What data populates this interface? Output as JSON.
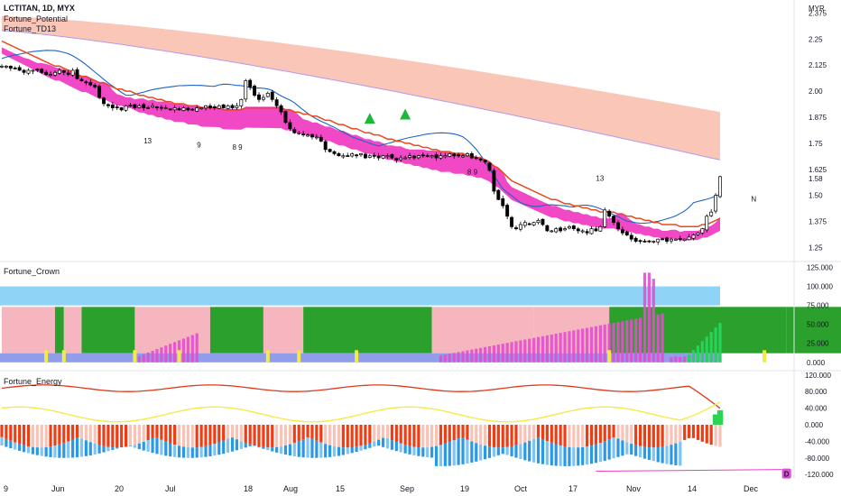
{
  "header": {
    "symbol": "LCTITAN, 1D, MYX",
    "indicators": [
      "Fortune_Potential",
      "Fortune_TD13"
    ],
    "currency": "MYR"
  },
  "panes": {
    "crown": {
      "title": "Fortune_Crown"
    },
    "energy": {
      "title": "Fortune_Energy"
    }
  },
  "colors": {
    "up": "#ffffff",
    "down": "#000000",
    "ema": "#e8491d",
    "band": "#f03ec3",
    "cloud": "#f9b8a6",
    "bb": "#1e64c8",
    "cyan": "#26c6da",
    "green": "#1bb83a",
    "crown_green": "#2ca02c",
    "crown_pink": "#f6b6c0",
    "crown_blue": "#8fd3f6",
    "crown_bar": "#e54ccf",
    "energy_red": "#ee3d15",
    "energy_pink": "#f8c2b6",
    "energy_blue": "#2a98e6",
    "energy_yellow": "#f5ea48",
    "energy_line": "#e03a1a"
  },
  "chart_data": [
    {
      "type": "candlestick",
      "pane": "main",
      "x_labels": [
        "9",
        "Jun",
        "20",
        "Jul",
        "18",
        "Aug",
        "15",
        "Sep",
        "19",
        "Oct",
        "17",
        "Nov",
        "14",
        "Dec"
      ],
      "y_ticks": [
        2.375,
        2.25,
        2.125,
        2.0,
        1.875,
        1.75,
        1.625,
        1.58,
        1.5,
        1.375,
        1.25
      ],
      "ylim": [
        1.2,
        2.42
      ],
      "close": [
        2.12,
        2.12,
        2.11,
        2.11,
        2.1,
        2.09,
        2.1,
        2.1,
        2.1,
        2.09,
        2.08,
        2.08,
        2.09,
        2.1,
        2.09,
        2.08,
        2.1,
        2.06,
        2.05,
        2.04,
        2.03,
        2.02,
        1.97,
        1.94,
        1.93,
        1.92,
        1.92,
        1.91,
        1.93,
        1.93,
        1.92,
        1.93,
        1.92,
        1.92,
        1.93,
        1.92,
        1.92,
        1.92,
        1.91,
        1.92,
        1.91,
        1.92,
        1.91,
        1.91,
        1.92,
        1.92,
        1.93,
        1.92,
        1.92,
        1.93,
        1.92,
        1.93,
        1.92,
        1.93,
        1.96,
        2.05,
        2.02,
        1.98,
        1.96,
        1.97,
        1.99,
        1.96,
        1.93,
        1.9,
        1.85,
        1.82,
        1.8,
        1.8,
        1.79,
        1.79,
        1.78,
        1.78,
        1.76,
        1.72,
        1.71,
        1.7,
        1.69,
        1.69,
        1.69,
        1.7,
        1.69,
        1.7,
        1.68,
        1.69,
        1.69,
        1.68,
        1.69,
        1.69,
        1.68,
        1.67,
        1.68,
        1.68,
        1.69,
        1.68,
        1.69,
        1.69,
        1.69,
        1.69,
        1.68,
        1.69,
        1.69,
        1.7,
        1.69,
        1.69,
        1.69,
        1.7,
        1.68,
        1.68,
        1.67,
        1.66,
        1.62,
        1.52,
        1.48,
        1.45,
        1.4,
        1.35,
        1.34,
        1.36,
        1.37,
        1.36,
        1.37,
        1.38,
        1.36,
        1.33,
        1.33,
        1.34,
        1.33,
        1.34,
        1.35,
        1.34,
        1.33,
        1.33,
        1.32,
        1.34,
        1.33,
        1.35,
        1.43,
        1.4,
        1.37,
        1.34,
        1.32,
        1.31,
        1.29,
        1.28,
        1.28,
        1.28,
        1.28,
        1.28,
        1.29,
        1.29,
        1.28,
        1.29,
        1.29,
        1.29,
        1.29,
        1.3,
        1.31,
        1.32,
        1.34,
        1.4,
        1.42,
        1.5,
        1.59
      ],
      "ema": [
        2.24,
        2.23,
        2.22,
        2.21,
        2.2,
        2.19,
        2.18,
        2.17,
        2.16,
        2.15,
        2.14,
        2.13,
        2.12,
        2.12,
        2.11,
        2.1,
        2.09,
        2.08,
        2.07,
        2.07,
        2.06,
        2.05,
        2.04,
        2.04,
        2.03,
        2.02,
        2.01,
        2.01,
        2,
        2,
        1.99,
        1.98,
        1.98,
        1.97,
        1.97,
        1.96,
        1.96,
        1.95,
        1.95,
        1.94,
        1.94,
        1.94,
        1.93,
        1.93,
        1.93,
        1.92,
        1.92,
        1.92,
        1.92,
        1.92,
        1.91,
        1.91,
        1.91,
        1.91,
        1.91,
        1.92,
        1.92,
        1.92,
        1.92,
        1.92,
        1.92,
        1.92,
        1.92,
        1.92,
        1.91,
        1.91,
        1.9,
        1.9,
        1.89,
        1.89,
        1.88,
        1.88,
        1.87,
        1.86,
        1.86,
        1.85,
        1.84,
        1.84,
        1.83,
        1.82,
        1.82,
        1.81,
        1.8,
        1.8,
        1.79,
        1.79,
        1.78,
        1.77,
        1.77,
        1.76,
        1.76,
        1.75,
        1.75,
        1.74,
        1.74,
        1.73,
        1.73,
        1.72,
        1.72,
        1.71,
        1.71,
        1.71,
        1.7,
        1.7,
        1.7,
        1.69,
        1.69,
        1.68,
        1.68,
        1.67,
        1.66,
        1.64,
        1.63,
        1.61,
        1.59,
        1.57,
        1.56,
        1.55,
        1.54,
        1.53,
        1.52,
        1.51,
        1.5,
        1.49,
        1.48,
        1.48,
        1.47,
        1.46,
        1.46,
        1.45,
        1.45,
        1.44,
        1.44,
        1.43,
        1.43,
        1.42,
        1.42,
        1.42,
        1.42,
        1.41,
        1.41,
        1.4,
        1.4,
        1.39,
        1.39,
        1.38,
        1.38,
        1.37,
        1.37,
        1.36,
        1.36,
        1.36,
        1.36,
        1.35,
        1.35,
        1.35,
        1.35,
        1.35,
        1.36,
        1.36,
        1.37,
        1.38,
        1.39
      ]
    },
    {
      "type": "bar",
      "pane": "crown",
      "y_ticks": [
        125.0,
        100.0,
        75.0,
        50.0,
        25.0,
        0.0
      ],
      "ylim": [
        -5,
        128
      ]
    },
    {
      "type": "bar",
      "pane": "energy",
      "y_ticks": [
        120.0,
        80.0,
        40.0,
        0.0,
        -40.0,
        -80.0,
        -120.0
      ],
      "ylim": [
        -124,
        124
      ],
      "annotation": "D"
    }
  ]
}
